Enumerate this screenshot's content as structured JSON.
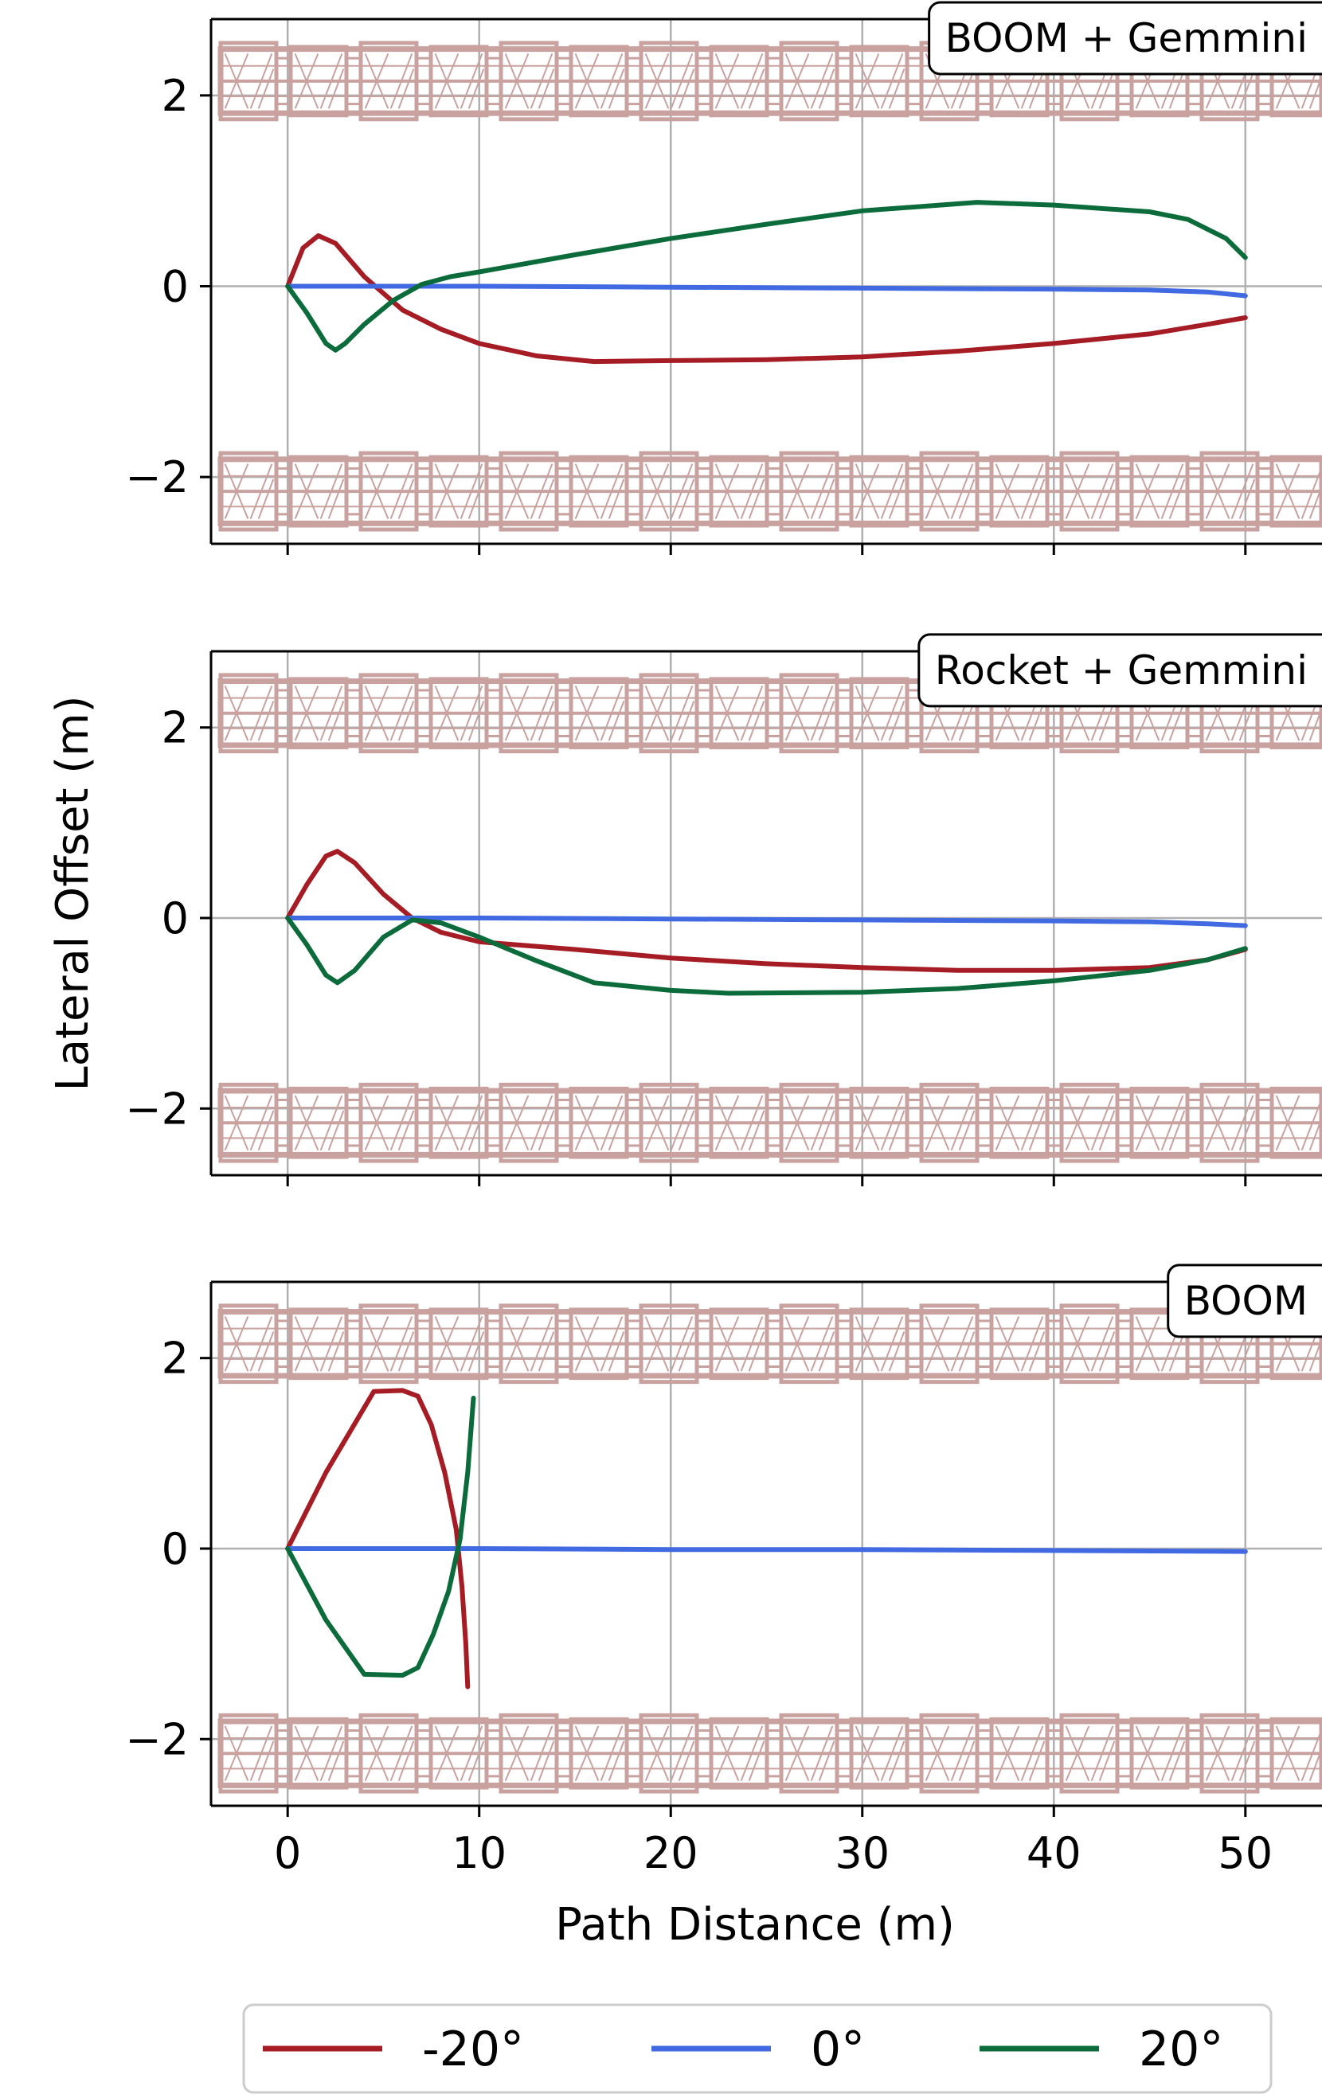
{
  "chart_data": [
    {
      "type": "line",
      "title": "BOOM + Gemmini",
      "xlabel": "",
      "ylabel": "",
      "xlim": [
        -4,
        54
      ],
      "ylim": [
        -2.7,
        2.8
      ],
      "xticks": [
        0,
        10,
        20,
        30,
        40,
        50
      ],
      "yticks": [
        -2,
        0,
        2
      ],
      "ytick_labels": [
        "−2",
        "0",
        "2"
      ],
      "grid": true,
      "series": [
        {
          "name": "-20°",
          "color": "#a51c24",
          "x": [
            0,
            0.8,
            1.6,
            2.5,
            4,
            6,
            8,
            10,
            13,
            16,
            20,
            25,
            30,
            35,
            40,
            45,
            48,
            50
          ],
          "y": [
            0,
            0.4,
            0.53,
            0.45,
            0.1,
            -0.25,
            -0.45,
            -0.6,
            -0.73,
            -0.79,
            -0.78,
            -0.77,
            -0.74,
            -0.68,
            -0.6,
            -0.5,
            -0.4,
            -0.33
          ]
        },
        {
          "name": "0°",
          "color": "#4169e1",
          "x": [
            0,
            10,
            20,
            30,
            40,
            45,
            48,
            50
          ],
          "y": [
            0,
            0,
            -0.01,
            -0.02,
            -0.03,
            -0.04,
            -0.06,
            -0.1
          ]
        },
        {
          "name": "20°",
          "color": "#0b6b3a",
          "x": [
            0,
            1,
            2,
            2.5,
            3,
            4,
            5.5,
            7,
            8.5,
            10,
            15,
            20,
            25,
            30,
            36,
            40,
            45,
            47,
            49,
            50
          ],
          "y": [
            0,
            -0.28,
            -0.6,
            -0.67,
            -0.6,
            -0.4,
            -0.15,
            0.02,
            0.1,
            0.15,
            0.33,
            0.5,
            0.65,
            0.79,
            0.88,
            0.85,
            0.78,
            0.7,
            0.5,
            0.3
          ]
        }
      ]
    },
    {
      "type": "line",
      "title": "Rocket + Gemmini",
      "xlabel": "",
      "ylabel": "Lateral Offset (m)",
      "xlim": [
        -4,
        54
      ],
      "ylim": [
        -2.7,
        2.8
      ],
      "xticks": [
        0,
        10,
        20,
        30,
        40,
        50
      ],
      "yticks": [
        -2,
        0,
        2
      ],
      "ytick_labels": [
        "−2",
        "0",
        "2"
      ],
      "grid": true,
      "series": [
        {
          "name": "-20°",
          "color": "#a51c24",
          "x": [
            0,
            1,
            2,
            2.6,
            3.5,
            5,
            6.5,
            8,
            10,
            15,
            20,
            25,
            30,
            35,
            40,
            45,
            48,
            50
          ],
          "y": [
            0,
            0.35,
            0.65,
            0.7,
            0.58,
            0.25,
            0,
            -0.15,
            -0.25,
            -0.33,
            -0.42,
            -0.48,
            -0.52,
            -0.55,
            -0.55,
            -0.52,
            -0.44,
            -0.33
          ]
        },
        {
          "name": "0°",
          "color": "#4169e1",
          "x": [
            0,
            10,
            20,
            30,
            40,
            45,
            48,
            50
          ],
          "y": [
            0,
            0,
            -0.01,
            -0.02,
            -0.03,
            -0.04,
            -0.06,
            -0.08
          ]
        },
        {
          "name": "20°",
          "color": "#0b6b3a",
          "x": [
            0,
            1,
            2,
            2.6,
            3.5,
            5,
            6.5,
            8,
            10,
            13,
            16,
            20,
            23,
            30,
            35,
            40,
            45,
            48,
            50
          ],
          "y": [
            0,
            -0.28,
            -0.6,
            -0.68,
            -0.55,
            -0.2,
            -0.02,
            -0.05,
            -0.2,
            -0.45,
            -0.68,
            -0.76,
            -0.79,
            -0.78,
            -0.74,
            -0.66,
            -0.55,
            -0.44,
            -0.32
          ]
        }
      ]
    },
    {
      "type": "line",
      "title": "BOOM",
      "xlabel": "Path Distance (m)",
      "ylabel": "",
      "xlim": [
        -4,
        54
      ],
      "ylim": [
        -2.7,
        2.8
      ],
      "xticks": [
        0,
        10,
        20,
        30,
        40,
        50
      ],
      "xtick_labels": [
        "0",
        "10",
        "20",
        "30",
        "40",
        "50"
      ],
      "yticks": [
        -2,
        0,
        2
      ],
      "ytick_labels": [
        "−2",
        "0",
        "2"
      ],
      "grid": true,
      "series": [
        {
          "name": "-20°",
          "color": "#a51c24",
          "x": [
            0,
            2,
            4.5,
            6,
            6.8,
            7.5,
            8.2,
            8.8,
            9.1,
            9.3,
            9.4
          ],
          "y": [
            0,
            0.8,
            1.65,
            1.66,
            1.6,
            1.3,
            0.8,
            0.2,
            -0.4,
            -1.0,
            -1.45
          ]
        },
        {
          "name": "0°",
          "color": "#4169e1",
          "x": [
            0,
            10,
            20,
            30,
            40,
            50
          ],
          "y": [
            0,
            0,
            -0.01,
            -0.01,
            -0.02,
            -0.03
          ]
        },
        {
          "name": "20°",
          "color": "#0b6b3a",
          "x": [
            0,
            2,
            4,
            6,
            6.8,
            7.6,
            8.4,
            9.0,
            9.4,
            9.7
          ],
          "y": [
            0,
            -0.75,
            -1.32,
            -1.33,
            -1.25,
            -0.9,
            -0.45,
            0.1,
            0.8,
            1.58
          ]
        }
      ]
    }
  ],
  "legend": {
    "position": "bottom-center",
    "entries": [
      {
        "label": "-20°",
        "color": "#a51c24"
      },
      {
        "label": "0°",
        "color": "#4169e1"
      },
      {
        "label": "20°",
        "color": "#0b6b3a"
      }
    ]
  },
  "colors": {
    "wall": "#c9a2a0",
    "grid": "#b0b0b0"
  }
}
